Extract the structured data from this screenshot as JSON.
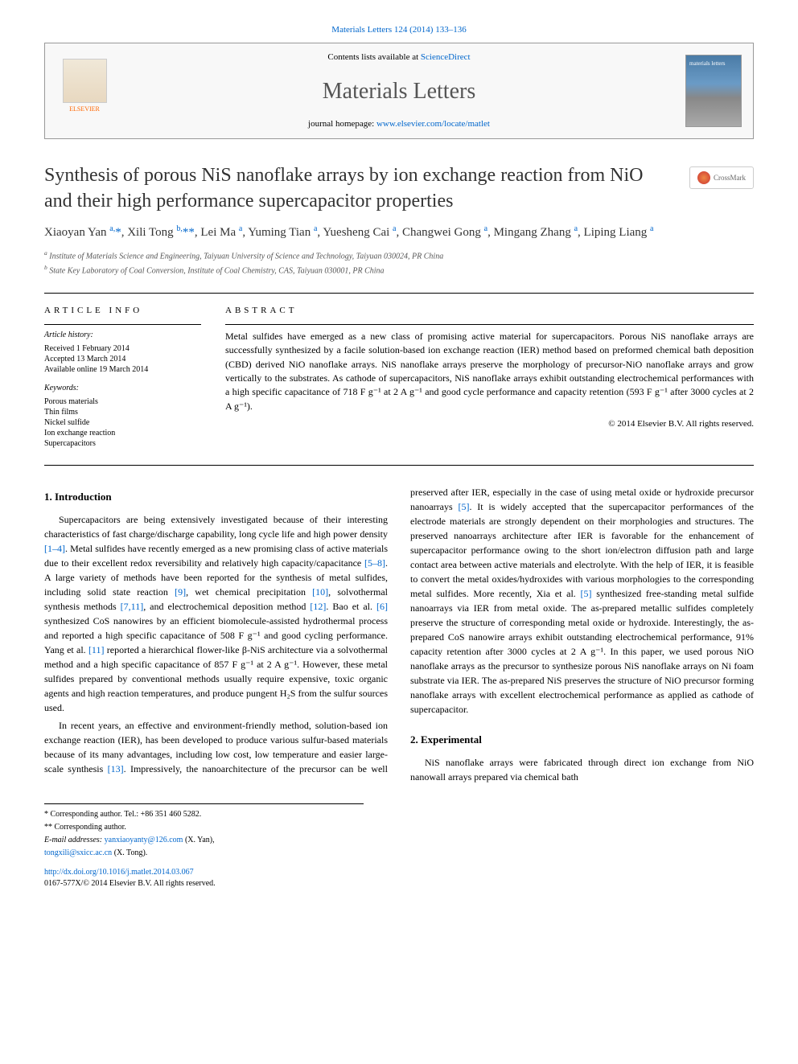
{
  "journal": {
    "citation": "Materials Letters 124 (2014) 133–136",
    "contents_prefix": "Contents lists available at ",
    "contents_link": "ScienceDirect",
    "name": "Materials Letters",
    "homepage_prefix": "journal homepage: ",
    "homepage_url": "www.elsevier.com/locate/matlet",
    "publisher": "ELSEVIER"
  },
  "article": {
    "title": "Synthesis of porous NiS nanoflake arrays by ion exchange reaction from NiO and their high performance supercapacitor properties",
    "crossmark": "CrossMark"
  },
  "authors": {
    "html": "Xiaoyan Yan <sup>a,</sup><a>*</a>, Xili Tong <sup>b,</sup><a>**</a>, Lei Ma <sup>a</sup>, Yuming Tian <sup>a</sup>, Yuesheng Cai <sup>a</sup>, Changwei Gong <sup>a</sup>, Mingang Zhang <sup>a</sup>, Liping Liang <sup>a</sup>"
  },
  "affiliations": [
    {
      "sup": "a",
      "text": "Institute of Materials Science and Engineering, Taiyuan University of Science and Technology, Taiyuan 030024, PR China"
    },
    {
      "sup": "b",
      "text": "State Key Laboratory of Coal Conversion, Institute of Coal Chemistry, CAS, Taiyuan 030001, PR China"
    }
  ],
  "info": {
    "label": "article info",
    "history_label": "Article history:",
    "history": [
      "Received 1 February 2014",
      "Accepted 13 March 2014",
      "Available online 19 March 2014"
    ],
    "keywords_label": "Keywords:",
    "keywords": [
      "Porous materials",
      "Thin films",
      "Nickel sulfide",
      "Ion exchange reaction",
      "Supercapacitors"
    ]
  },
  "abstract": {
    "label": "abstract",
    "text": "Metal sulfides have emerged as a new class of promising active material for supercapacitors. Porous NiS nanoflake arrays are successfully synthesized by a facile solution-based ion exchange reaction (IER) method based on preformed chemical bath deposition (CBD) derived NiO nanoflake arrays. NiS nanoflake arrays preserve the morphology of precursor-NiO nanoflake arrays and grow vertically to the substrates. As cathode of supercapacitors, NiS nanoflake arrays exhibit outstanding electrochemical performances with a high specific capacitance of 718 F g⁻¹ at 2 A g⁻¹ and good cycle performance and capacity retention (593 F g⁻¹ after 3000 cycles at 2 A g⁻¹).",
    "copyright": "© 2014 Elsevier B.V. All rights reserved."
  },
  "sections": {
    "intro_heading": "1.  Introduction",
    "intro_p1_pre": "Supercapacitors are being extensively investigated because of their interesting characteristics of fast charge/discharge capability, long cycle life and high power density ",
    "ref_1_4": "[1–4]",
    "intro_p1_mid1": ". Metal sulfides have recently emerged as a new promising class of active materials due to their excellent redox reversibility and relatively high capacity/capacitance ",
    "ref_5_8": "[5–8]",
    "intro_p1_mid2": ". A large variety of methods have been reported for the synthesis of metal sulfides, including solid state reaction ",
    "ref_9": "[9]",
    "intro_p1_mid3": ", wet chemical precipitation ",
    "ref_10": "[10]",
    "intro_p1_mid4": ", solvothermal synthesis methods ",
    "ref_7_11": "[7,11]",
    "intro_p1_mid5": ", and electrochemical deposition method ",
    "ref_12": "[12]",
    "intro_p1_mid6": ". Bao et al. ",
    "ref_6": "[6]",
    "intro_p1_mid7": " synthesized CoS nanowires by an efficient biomolecule-assisted hydrothermal process and reported a high specific capacitance of 508 F g⁻¹ and good cycling performance. Yang et al. ",
    "ref_11": "[11]",
    "intro_p1_end": " reported a hierarchical flower-like β-NiS architecture via a solvothermal method and a high specific capacitance of 857 F g⁻¹ at 2 A g⁻¹. However, these metal sulfides prepared by conventional methods usually require expensive, toxic organic agents and high reaction temperatures, and produce pungent H₂S from the sulfur sources used.",
    "intro_p2_pre": "In recent years, an effective and environment-friendly method, solution-based ion exchange reaction (IER), has been developed to produce various sulfur-based materials because of its many advantages, including low cost, low temperature and easier large-scale synthesis ",
    "ref_13": "[13]",
    "intro_p2_mid1": ". Impressively, the nanoarchitecture of the precursor can be well preserved after IER, especially in the case of using metal oxide or hydroxide precursor nanoarrays ",
    "ref_5a": "[5]",
    "intro_p2_mid2": ". It is widely accepted that the supercapacitor performances of the electrode materials are strongly dependent on their morphologies and structures. The preserved nanoarrays architecture after IER is favorable for the enhancement of supercapacitor performance owing to the short ion/electron diffusion path and large contact area between active materials and electrolyte. With the help of IER, it is feasible to convert the metal oxides/hydroxides with various morphologies to the corresponding metal sulfides. More recently, Xia et al. ",
    "ref_5b": "[5]",
    "intro_p2_end": " synthesized free-standing metal sulfide nanoarrays via IER from metal oxide. The as-prepared metallic sulfides completely preserve the structure of corresponding metal oxide or hydroxide. Interestingly, the as-prepared CoS nanowire arrays exhibit outstanding electrochemical performance, 91% capacity retention after 3000 cycles at 2 A g⁻¹. In this paper, we used porous NiO nanoflake arrays as the precursor to synthesize porous NiS nanoflake arrays on Ni foam substrate via IER. The as-prepared NiS preserves the structure of NiO precursor forming nanoflake arrays with excellent electrochemical performance as applied as cathode of supercapacitor.",
    "exp_heading": "2.  Experimental",
    "exp_p1": "NiS nanoflake arrays were fabricated through direct ion exchange from NiO nanowall arrays prepared via chemical bath"
  },
  "footnotes": {
    "corr1": "* Corresponding author. Tel.: +86 351 460 5282.",
    "corr2": "** Corresponding author.",
    "email_label": "E-mail addresses: ",
    "email1": "yanxiaoyanty@126.com",
    "email1_who": " (X. Yan),",
    "email2": "tongxili@sxicc.ac.cn",
    "email2_who": " (X. Tong)."
  },
  "doi": {
    "url": "http://dx.doi.org/10.1016/j.matlet.2014.03.067",
    "issn": "0167-577X/© 2014 Elsevier B.V. All rights reserved."
  },
  "colors": {
    "link": "#0066cc",
    "text": "#000000",
    "muted": "#555555"
  }
}
